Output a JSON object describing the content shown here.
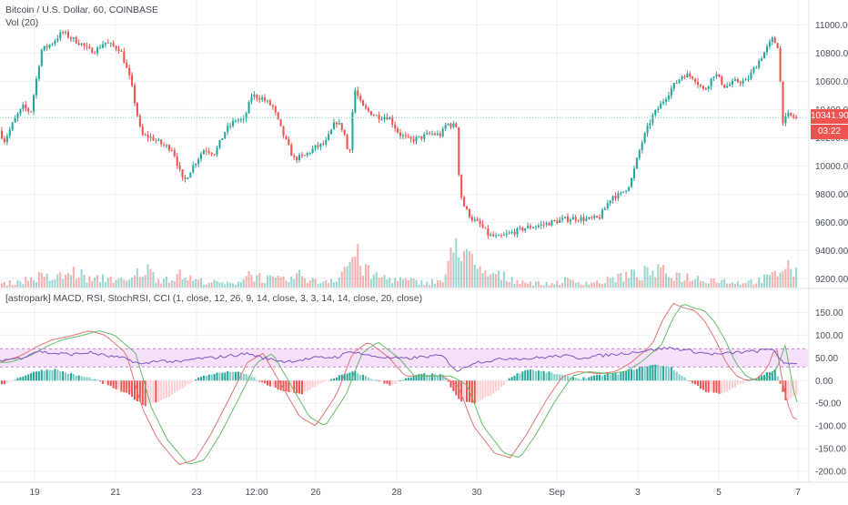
{
  "chart_data": {
    "type": "candlestick",
    "title": "Bitcoin / U.S. Dollar, 60, COINBASE",
    "volume_label": "Vol (20)",
    "indicator_label": "[astropark] MACD, RSI, StochRSI, CCI (1, close, 12, 26, 9, 14, close, 3, 3, 14, 14, close, 20, close)",
    "x_ticks": [
      "19",
      "21",
      "23",
      "12:00",
      "26",
      "28",
      "30",
      "Sep",
      "3",
      "5",
      "7"
    ],
    "price_axis": {
      "ticks": [
        9200,
        9400,
        9600,
        9800,
        10000,
        10200,
        10400,
        10600,
        10800,
        11000
      ],
      "range": [
        9150,
        11100
      ]
    },
    "indicator_axis": {
      "ticks": [
        150,
        100,
        50,
        0,
        -50,
        -100,
        -150,
        -200
      ],
      "tick_labels": [
        "150.00",
        "100.00",
        "50.00",
        "0.00",
        "-50.00",
        "-100.00",
        "-150.00",
        "-200.00"
      ],
      "range": [
        -220,
        185
      ],
      "band": [
        30,
        70
      ]
    },
    "price_path": [
      [
        17.6,
        10250
      ],
      [
        17.7,
        10180
      ],
      [
        17.9,
        10330
      ],
      [
        18.05,
        10420
      ],
      [
        18.2,
        10380
      ],
      [
        18.4,
        10820
      ],
      [
        18.6,
        10870
      ],
      [
        18.8,
        10950
      ],
      [
        19.0,
        10900
      ],
      [
        19.15,
        10870
      ],
      [
        19.3,
        10820
      ],
      [
        19.45,
        10820
      ],
      [
        19.6,
        10880
      ],
      [
        19.75,
        10850
      ],
      [
        19.9,
        10830
      ],
      [
        20.1,
        10600
      ],
      [
        20.3,
        10220
      ],
      [
        20.5,
        10200
      ],
      [
        20.7,
        10150
      ],
      [
        20.9,
        10120
      ],
      [
        21.1,
        9880
      ],
      [
        21.3,
        10010
      ],
      [
        21.5,
        10120
      ],
      [
        21.7,
        10090
      ],
      [
        21.9,
        10250
      ],
      [
        22.1,
        10330
      ],
      [
        22.25,
        10320
      ],
      [
        22.4,
        10500
      ],
      [
        22.6,
        10480
      ],
      [
        22.8,
        10420
      ],
      [
        23.0,
        10220
      ],
      [
        23.2,
        10050
      ],
      [
        23.4,
        10070
      ],
      [
        23.6,
        10130
      ],
      [
        23.8,
        10160
      ],
      [
        24.0,
        10320
      ],
      [
        24.15,
        10250
      ],
      [
        24.25,
        10050
      ],
      [
        24.35,
        10550
      ],
      [
        24.5,
        10420
      ],
      [
        24.65,
        10380
      ],
      [
        24.8,
        10350
      ],
      [
        25.0,
        10350
      ],
      [
        25.2,
        10230
      ],
      [
        25.4,
        10180
      ],
      [
        25.6,
        10200
      ],
      [
        25.8,
        10230
      ],
      [
        26.0,
        10220
      ],
      [
        26.1,
        10300
      ],
      [
        26.3,
        10280
      ],
      [
        26.35,
        9830
      ],
      [
        26.45,
        9700
      ],
      [
        26.6,
        9620
      ],
      [
        26.75,
        9580
      ],
      [
        26.9,
        9510
      ],
      [
        27.1,
        9490
      ],
      [
        27.3,
        9520
      ],
      [
        27.6,
        9560
      ],
      [
        27.9,
        9580
      ],
      [
        28.2,
        9610
      ],
      [
        28.5,
        9630
      ],
      [
        28.8,
        9620
      ],
      [
        29.0,
        9630
      ],
      [
        29.1,
        9690
      ],
      [
        29.25,
        9790
      ],
      [
        29.4,
        9790
      ],
      [
        29.6,
        9880
      ],
      [
        29.8,
        10150
      ],
      [
        30.0,
        10340
      ],
      [
        30.2,
        10450
      ],
      [
        30.4,
        10560
      ],
      [
        30.6,
        10650
      ],
      [
        30.8,
        10630
      ],
      [
        31.0,
        10530
      ],
      [
        31.2,
        10660
      ],
      [
        31.4,
        10560
      ],
      [
        31.6,
        10600
      ],
      [
        31.8,
        10600
      ],
      [
        32.0,
        10720
      ],
      [
        32.2,
        10840
      ],
      [
        32.3,
        10900
      ],
      [
        32.4,
        10850
      ],
      [
        32.5,
        10310
      ],
      [
        32.6,
        10360
      ],
      [
        32.75,
        10340
      ]
    ],
    "volume_path": [
      [
        17.6,
        10
      ],
      [
        18.0,
        20
      ],
      [
        18.3,
        30
      ],
      [
        18.6,
        25
      ],
      [
        19.0,
        45
      ],
      [
        19.3,
        20
      ],
      [
        19.6,
        30
      ],
      [
        20.0,
        15
      ],
      [
        20.3,
        55
      ],
      [
        20.6,
        25
      ],
      [
        21.0,
        35
      ],
      [
        21.3,
        20
      ],
      [
        21.6,
        15
      ],
      [
        22.0,
        10
      ],
      [
        22.3,
        40
      ],
      [
        22.6,
        25
      ],
      [
        23.0,
        20
      ],
      [
        23.3,
        35
      ],
      [
        23.6,
        15
      ],
      [
        24.0,
        30
      ],
      [
        24.3,
        95
      ],
      [
        24.6,
        35
      ],
      [
        25.0,
        25
      ],
      [
        25.3,
        20
      ],
      [
        25.6,
        15
      ],
      [
        26.0,
        20
      ],
      [
        26.3,
        150
      ],
      [
        26.6,
        45
      ],
      [
        27.0,
        35
      ],
      [
        27.3,
        25
      ],
      [
        27.6,
        15
      ],
      [
        28.0,
        10
      ],
      [
        28.3,
        20
      ],
      [
        28.6,
        15
      ],
      [
        29.0,
        15
      ],
      [
        29.3,
        30
      ],
      [
        29.6,
        35
      ],
      [
        30.0,
        45
      ],
      [
        30.3,
        40
      ],
      [
        30.6,
        30
      ],
      [
        31.0,
        25
      ],
      [
        31.3,
        20
      ],
      [
        31.6,
        15
      ],
      [
        32.0,
        20
      ],
      [
        32.3,
        35
      ],
      [
        32.5,
        70
      ],
      [
        32.75,
        30
      ]
    ],
    "stochastic_path": [
      [
        17.6,
        40
      ],
      [
        18.0,
        55
      ],
      [
        18.3,
        75
      ],
      [
        18.6,
        90
      ],
      [
        19.0,
        100
      ],
      [
        19.3,
        110
      ],
      [
        19.6,
        100
      ],
      [
        20.0,
        60
      ],
      [
        20.3,
        -60
      ],
      [
        20.6,
        -130
      ],
      [
        21.0,
        -185
      ],
      [
        21.3,
        -175
      ],
      [
        21.6,
        -120
      ],
      [
        22.0,
        -30
      ],
      [
        22.3,
        40
      ],
      [
        22.6,
        60
      ],
      [
        23.0,
        -20
      ],
      [
        23.3,
        -80
      ],
      [
        23.6,
        -100
      ],
      [
        24.0,
        -30
      ],
      [
        24.3,
        60
      ],
      [
        24.6,
        85
      ],
      [
        25.0,
        50
      ],
      [
        25.3,
        10
      ],
      [
        25.6,
        10
      ],
      [
        26.0,
        10
      ],
      [
        26.3,
        -10
      ],
      [
        26.6,
        -100
      ],
      [
        27.0,
        -160
      ],
      [
        27.3,
        -170
      ],
      [
        27.6,
        -120
      ],
      [
        28.0,
        -40
      ],
      [
        28.3,
        10
      ],
      [
        28.6,
        20
      ],
      [
        29.0,
        15
      ],
      [
        29.3,
        20
      ],
      [
        29.6,
        40
      ],
      [
        30.0,
        80
      ],
      [
        30.2,
        135
      ],
      [
        30.4,
        170
      ],
      [
        30.6,
        160
      ],
      [
        30.8,
        155
      ],
      [
        31.0,
        130
      ],
      [
        31.2,
        90
      ],
      [
        31.4,
        40
      ],
      [
        31.6,
        10
      ],
      [
        31.8,
        0
      ],
      [
        32.0,
        5
      ],
      [
        32.2,
        30
      ],
      [
        32.35,
        80
      ],
      [
        32.5,
        -20
      ],
      [
        32.65,
        -80
      ],
      [
        32.75,
        -85
      ]
    ],
    "rsi_path": [
      [
        17.6,
        45
      ],
      [
        18.0,
        50
      ],
      [
        18.3,
        65
      ],
      [
        18.6,
        60
      ],
      [
        19.0,
        58
      ],
      [
        19.3,
        62
      ],
      [
        19.6,
        55
      ],
      [
        20.0,
        48
      ],
      [
        20.3,
        35
      ],
      [
        20.6,
        45
      ],
      [
        21.0,
        40
      ],
      [
        21.3,
        48
      ],
      [
        21.6,
        50
      ],
      [
        22.0,
        55
      ],
      [
        22.3,
        60
      ],
      [
        22.6,
        50
      ],
      [
        23.0,
        42
      ],
      [
        23.3,
        45
      ],
      [
        23.6,
        50
      ],
      [
        24.0,
        52
      ],
      [
        24.3,
        65
      ],
      [
        24.6,
        55
      ],
      [
        25.0,
        50
      ],
      [
        25.3,
        48
      ],
      [
        25.6,
        52
      ],
      [
        26.0,
        55
      ],
      [
        26.3,
        20
      ],
      [
        26.6,
        40
      ],
      [
        27.0,
        45
      ],
      [
        27.3,
        50
      ],
      [
        27.6,
        48
      ],
      [
        28.0,
        52
      ],
      [
        28.3,
        55
      ],
      [
        28.6,
        50
      ],
      [
        29.0,
        55
      ],
      [
        29.3,
        58
      ],
      [
        29.6,
        62
      ],
      [
        30.0,
        68
      ],
      [
        30.3,
        72
      ],
      [
        30.6,
        68
      ],
      [
        31.0,
        60
      ],
      [
        31.3,
        58
      ],
      [
        31.6,
        62
      ],
      [
        32.0,
        65
      ],
      [
        32.3,
        70
      ],
      [
        32.5,
        35
      ],
      [
        32.75,
        40
      ]
    ],
    "histogram_path": [
      [
        17.6,
        -10
      ],
      [
        18.0,
        10
      ],
      [
        18.3,
        22
      ],
      [
        18.6,
        25
      ],
      [
        19.0,
        12
      ],
      [
        19.3,
        5
      ],
      [
        19.6,
        -10
      ],
      [
        20.0,
        -30
      ],
      [
        20.3,
        -55
      ],
      [
        20.6,
        -45
      ],
      [
        21.0,
        -20
      ],
      [
        21.3,
        5
      ],
      [
        21.6,
        15
      ],
      [
        22.0,
        20
      ],
      [
        22.3,
        12
      ],
      [
        22.6,
        -8
      ],
      [
        23.0,
        -25
      ],
      [
        23.3,
        -30
      ],
      [
        23.6,
        -10
      ],
      [
        24.0,
        10
      ],
      [
        24.3,
        20
      ],
      [
        24.6,
        5
      ],
      [
        25.0,
        -10
      ],
      [
        25.3,
        5
      ],
      [
        25.6,
        15
      ],
      [
        26.0,
        12
      ],
      [
        26.3,
        -45
      ],
      [
        26.6,
        -50
      ],
      [
        27.0,
        -25
      ],
      [
        27.3,
        10
      ],
      [
        27.6,
        25
      ],
      [
        28.0,
        18
      ],
      [
        28.3,
        10
      ],
      [
        28.6,
        5
      ],
      [
        29.0,
        12
      ],
      [
        29.3,
        15
      ],
      [
        29.6,
        25
      ],
      [
        30.0,
        35
      ],
      [
        30.3,
        30
      ],
      [
        30.6,
        5
      ],
      [
        31.0,
        -25
      ],
      [
        31.3,
        -30
      ],
      [
        31.6,
        -10
      ],
      [
        32.0,
        10
      ],
      [
        32.3,
        25
      ],
      [
        32.5,
        -45
      ],
      [
        32.75,
        -30
      ]
    ],
    "current_price": {
      "price": "10341.90",
      "countdown": "03:22"
    }
  },
  "colors": {
    "up": "#26a69a",
    "down": "#ef5350",
    "stoch_k": "#e57373",
    "stoch_d": "#66bb6a",
    "rsi": "#7e57c2",
    "band_fill": "#f3dcf8",
    "band_border": "#c77dd7",
    "grid": "#eef0f3",
    "axis_text": "#4a4f5a"
  }
}
